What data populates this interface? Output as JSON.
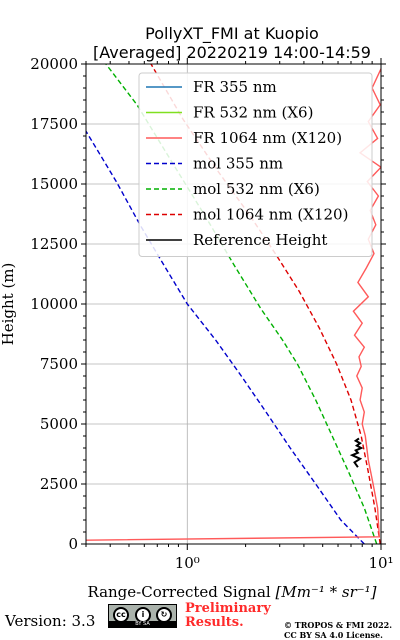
{
  "chart_data": {
    "type": "line",
    "title_line1": "PollyXT_FMI at Kuopio",
    "title_line2": "[Averaged] 20220219 14:00-14:59",
    "xlabel_text": "Range-Corrected Signal ",
    "xlabel_units": "[Mm⁻¹ * sr⁻¹]",
    "ylabel": "Height (m)",
    "xscale": "log",
    "xlim": [
      0.3,
      10
    ],
    "ylim": [
      0,
      20000
    ],
    "xticks": [
      1,
      10
    ],
    "xtick_labels": [
      "10⁰",
      "10¹"
    ],
    "yticks": [
      0,
      2500,
      5000,
      7500,
      10000,
      12500,
      15000,
      17500,
      20000
    ],
    "grid": true,
    "legend_position": "top-right",
    "legend": [
      {
        "label": "FR 355 nm",
        "color": "#1f77b4",
        "style": "solid"
      },
      {
        "label": "FR 532 nm (X6)",
        "color": "#80e020",
        "style": "solid"
      },
      {
        "label": "FR 1064 nm (X120)",
        "color": "#ff5a5a",
        "style": "solid"
      },
      {
        "label": "mol 355 nm",
        "color": "#0000cc",
        "style": "dashed"
      },
      {
        "label": "mol 532 nm (X6)",
        "color": "#00b000",
        "style": "dashed"
      },
      {
        "label": "mol 1064 nm (X120)",
        "color": "#dd0000",
        "style": "dashed"
      },
      {
        "label": "Reference Height",
        "color": "#000000",
        "style": "solid"
      }
    ],
    "series": [
      {
        "name": "mol 355 nm",
        "color": "#0000cc",
        "style": "dashed",
        "x": [
          8.2,
          6.2,
          4.6,
          3.4,
          2.55,
          1.9,
          1.4,
          1.0,
          0.76,
          0.57,
          0.43,
          0.3
        ],
        "y": [
          0,
          1000,
          2500,
          4000,
          5500,
          7000,
          8500,
          10000,
          11600,
          13300,
          15100,
          17200
        ]
      },
      {
        "name": "mol 532 nm (X6)",
        "color": "#00b000",
        "style": "dashed",
        "x": [
          9.5,
          8.2,
          6.8,
          5.6,
          4.6,
          3.7,
          3.1,
          2.4,
          1.75,
          1.25,
          0.85,
          0.55,
          0.38
        ],
        "y": [
          0,
          1500,
          3000,
          4500,
          6000,
          7500,
          8500,
          9800,
          11600,
          13600,
          15800,
          18300,
          20000
        ]
      },
      {
        "name": "mol 1064 nm (X120)",
        "color": "#dd0000",
        "style": "dashed",
        "x": [
          9.9,
          9.3,
          8.6,
          7.9,
          7.0,
          5.9,
          4.8,
          3.8,
          2.9,
          2.1,
          1.45,
          0.95,
          0.65
        ],
        "y": [
          0,
          1500,
          3000,
          4500,
          6000,
          7500,
          9000,
          10500,
          12000,
          13700,
          15500,
          17700,
          20000
        ]
      },
      {
        "name": "FR 1064 nm (X120)",
        "color": "#ff5a5a",
        "style": "solid",
        "x": [
          0.3,
          9.8,
          9.6,
          9.1,
          8.6,
          8.3,
          8.0,
          8.2,
          7.8,
          8.0,
          7.5,
          7.9,
          7.7,
          8.2,
          7.3,
          8.0,
          7.2,
          8.6,
          7.6,
          8.4,
          9.2,
          8.6,
          9.4,
          8.8,
          9.7,
          8.5,
          10.0,
          7.8,
          9.6,
          8.6,
          9.9,
          9.0,
          10.0
        ],
        "y": [
          160,
          300,
          1500,
          2500,
          3500,
          4500,
          5000,
          5500,
          6000,
          6500,
          7000,
          7400,
          7800,
          8200,
          8700,
          9200,
          9700,
          10300,
          10900,
          11500,
          12100,
          12700,
          13300,
          13900,
          14500,
          15100,
          15700,
          16300,
          16900,
          17600,
          18300,
          19000,
          19800
        ]
      },
      {
        "name": "Reference Height",
        "color": "#000000",
        "style": "solid",
        "x": [
          7.6,
          7.3,
          7.8,
          7.1,
          7.6,
          7.4,
          7.9,
          7.5,
          7.8,
          7.4,
          7.7
        ],
        "y": [
          3200,
          3400,
          3550,
          3700,
          3800,
          3900,
          4000,
          4100,
          4200,
          4300,
          4400
        ]
      }
    ]
  },
  "footer": {
    "version": "Version: 3.3",
    "cc_label": "BY SA",
    "preliminary_line1": "Preliminary",
    "preliminary_line2": "Results.",
    "copyright_line1": "© TROPOS & FMI 2022.",
    "copyright_line2": "CC BY SA 4.0 License."
  }
}
